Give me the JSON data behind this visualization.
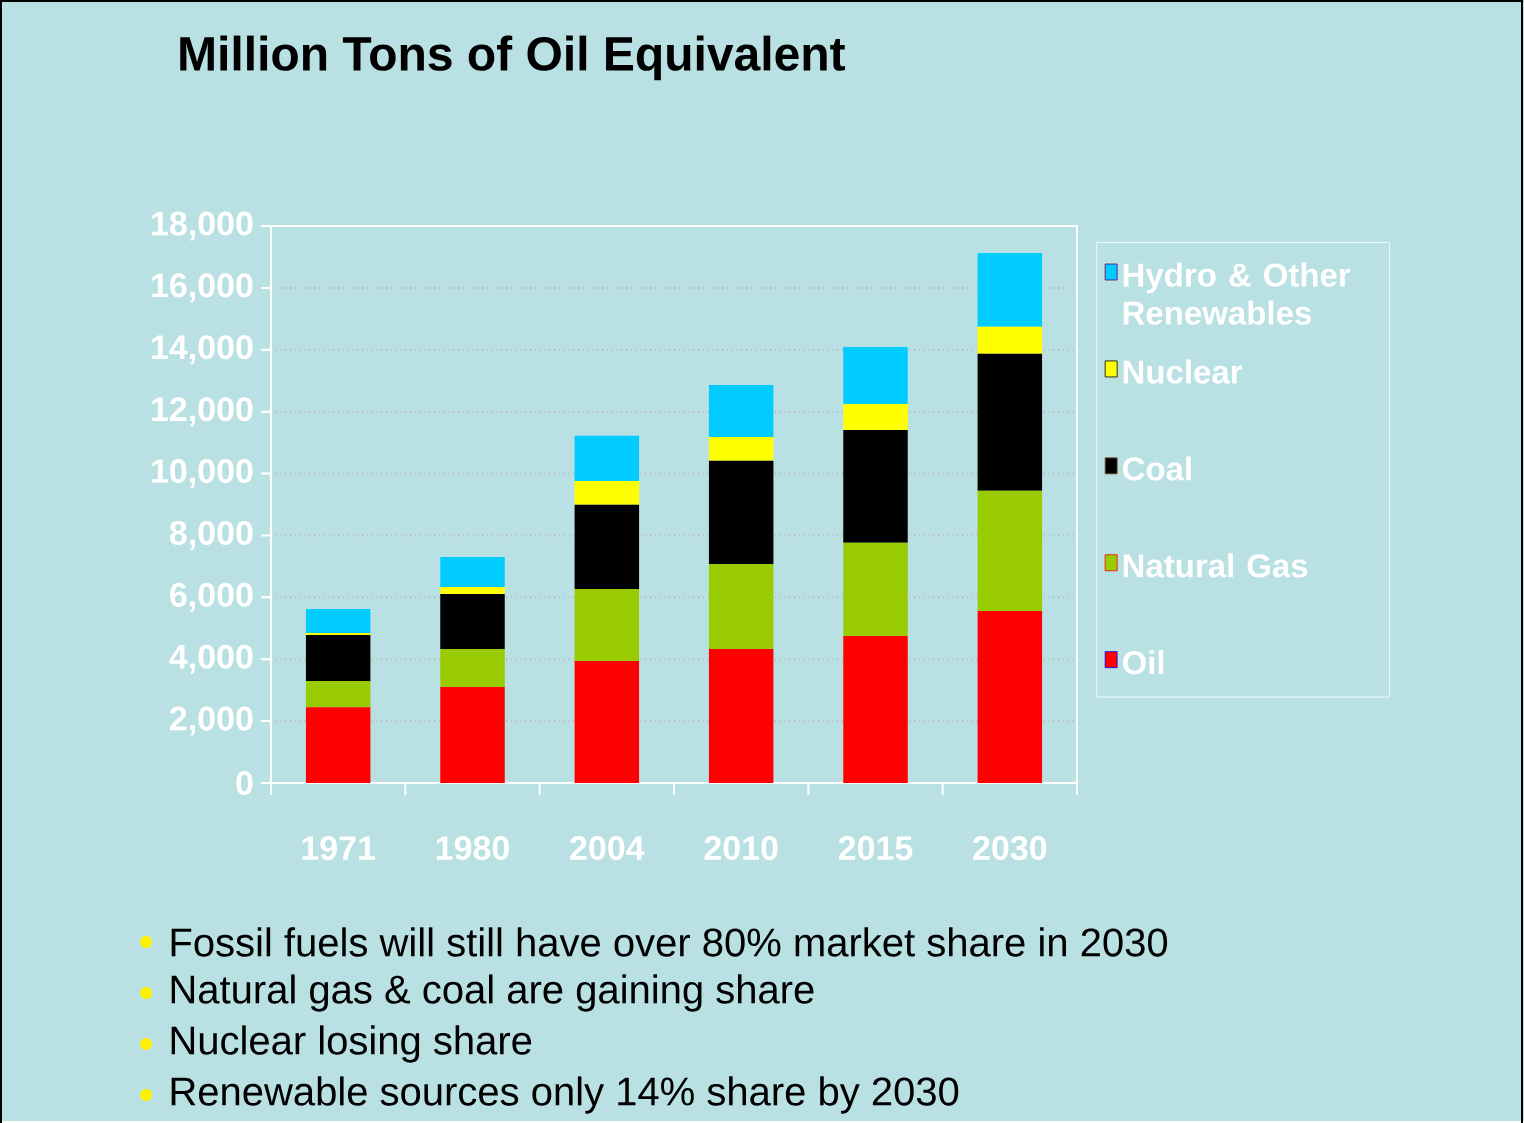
{
  "chart_data": {
    "type": "bar",
    "title": "Million Tons of Oil Equivalent",
    "categories": [
      "1971",
      "1980",
      "2004",
      "2010",
      "2015",
      "2030"
    ],
    "series": [
      {
        "name": "Oil",
        "color": "#ff0000",
        "values": [
          2450,
          3100,
          3940,
          4330,
          4750,
          5560
        ]
      },
      {
        "name": "Natural Gas",
        "color": "#99cc00",
        "values": [
          850,
          1230,
          2330,
          2750,
          3010,
          3880
        ]
      },
      {
        "name": "Coal",
        "color": "#000000",
        "values": [
          1480,
          1780,
          2720,
          3330,
          3650,
          4430
        ]
      },
      {
        "name": "Nuclear",
        "color": "#ffff00",
        "values": [
          70,
          220,
          770,
          770,
          840,
          870
        ]
      },
      {
        "name": "Hydro & Other Renewables",
        "color": "#00ccff",
        "values": [
          770,
          970,
          1460,
          1680,
          1840,
          2390
        ]
      }
    ],
    "stacked": true,
    "ylim": [
      0,
      18000
    ],
    "yticks": [
      0,
      {
        "value": 2000,
        "label": "2,000"
      },
      {
        "value": 4000,
        "label": "4,000"
      },
      {
        "value": 6000,
        "label": "6,000"
      },
      {
        "value": 8000,
        "label": "8,000"
      },
      {
        "value": 10000,
        "label": "10,000"
      },
      {
        "value": 12000,
        "label": "12,000"
      },
      {
        "value": 14000,
        "label": "14,000"
      },
      {
        "value": 16000,
        "label": "16,000"
      },
      {
        "value": 18000,
        "label": "18,000"
      }
    ],
    "grid": "y",
    "legend": "right",
    "annotations": [
      "Fossil fuels will still have over 80% market share in 2030",
      "Natural gas & coal are gaining share",
      "Nuclear losing share",
      "Renewable sources only 14% share by 2030"
    ]
  }
}
